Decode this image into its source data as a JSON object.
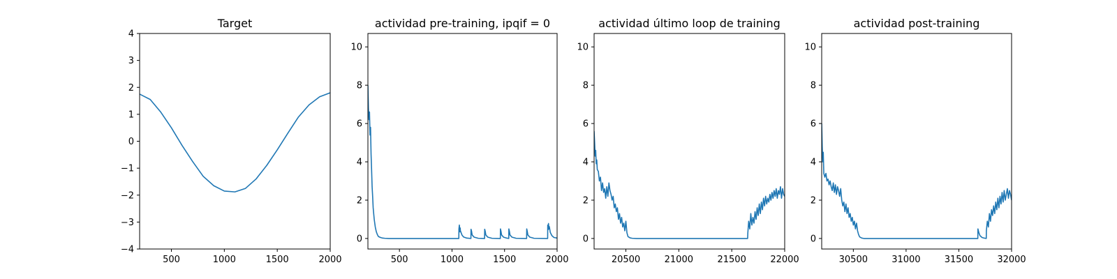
{
  "chart_data": [
    {
      "type": "line",
      "title": "Target",
      "xlabel": "",
      "ylabel": "",
      "xlim": [
        200,
        2000
      ],
      "ylim": [
        -4,
        4
      ],
      "xticks": [
        500,
        1000,
        1500,
        2000
      ],
      "xtick_labels": [
        "500",
        "1000",
        "1500",
        "2000"
      ],
      "yticks": [
        -4,
        -3,
        -2,
        -1,
        0,
        1,
        2,
        3,
        4
      ],
      "ytick_labels": [
        "−4",
        "−3",
        "−2",
        "−1",
        "0",
        "1",
        "2",
        "3",
        "4"
      ],
      "grid": false,
      "color": "#1f77b4",
      "series": [
        {
          "x": [
            200,
            300,
            400,
            500,
            600,
            700,
            800,
            900,
            1000,
            1100,
            1200,
            1300,
            1400,
            1500,
            1600,
            1700,
            1800,
            1900,
            2000
          ],
          "y": [
            1.75,
            1.55,
            1.08,
            0.5,
            -0.15,
            -0.75,
            -1.3,
            -1.65,
            -1.85,
            -1.88,
            -1.75,
            -1.4,
            -0.9,
            -0.32,
            0.3,
            0.9,
            1.35,
            1.65,
            1.8
          ]
        }
      ]
    },
    {
      "type": "line",
      "title": "actividad pre-training, ipqif = 0",
      "xlabel": "",
      "ylabel": "",
      "xlim": [
        200,
        2000
      ],
      "ylim": [
        -0.55,
        10.7
      ],
      "xticks": [
        500,
        1000,
        1500,
        2000
      ],
      "xtick_labels": [
        "500",
        "1000",
        "1500",
        "2000"
      ],
      "yticks": [
        0,
        2,
        4,
        6,
        8,
        10
      ],
      "ytick_labels": [
        "0",
        "2",
        "4",
        "6",
        "8",
        "10"
      ],
      "grid": false,
      "color": "#1f77b4",
      "series": [
        {
          "x": [
            200,
            205,
            210,
            215,
            220,
            225,
            230,
            235,
            240,
            245,
            250,
            260,
            270,
            280,
            290,
            300,
            320,
            340,
            360,
            400,
            600,
            800,
            1000,
            1065,
            1066,
            1070,
            1074,
            1078,
            1080,
            1095,
            1110,
            1140,
            1180,
            1181,
            1186,
            1192,
            1210,
            1250,
            1310,
            1311,
            1316,
            1322,
            1340,
            1380,
            1460,
            1461,
            1466,
            1472,
            1490,
            1520,
            1540,
            1541,
            1546,
            1552,
            1570,
            1610,
            1710,
            1711,
            1716,
            1722,
            1740,
            1780,
            1910,
            1911,
            1914,
            1918,
            1922,
            1926,
            1935,
            1950,
            1970,
            2000
          ],
          "y": [
            8.0,
            6.8,
            6.2,
            6.6,
            5.4,
            5.8,
            4.4,
            3.6,
            2.7,
            2.2,
            1.6,
            1.0,
            0.6,
            0.35,
            0.2,
            0.1,
            0.05,
            0.02,
            0.01,
            0.0,
            0.0,
            0.0,
            0.0,
            0.0,
            0.5,
            0.7,
            0.35,
            0.55,
            0.4,
            0.18,
            0.08,
            0.02,
            0.0,
            0.48,
            0.38,
            0.18,
            0.07,
            0.01,
            0.0,
            0.48,
            0.38,
            0.18,
            0.07,
            0.01,
            0.0,
            0.5,
            0.38,
            0.18,
            0.07,
            0.02,
            0.0,
            0.5,
            0.38,
            0.18,
            0.07,
            0.01,
            0.0,
            0.5,
            0.38,
            0.18,
            0.07,
            0.01,
            0.0,
            0.7,
            0.45,
            0.78,
            0.5,
            0.62,
            0.32,
            0.15,
            0.05,
            0.02
          ]
        }
      ]
    },
    {
      "type": "line",
      "title": "actividad último loop de training",
      "xlabel": "",
      "ylabel": "",
      "xlim": [
        20200,
        22000
      ],
      "ylim": [
        -0.55,
        10.7
      ],
      "xticks": [
        20500,
        21000,
        21500,
        22000
      ],
      "xtick_labels": [
        "20500",
        "21000",
        "21500",
        "22000"
      ],
      "yticks": [
        0,
        2,
        4,
        6,
        8,
        10
      ],
      "ytick_labels": [
        "0",
        "2",
        "4",
        "6",
        "8",
        "10"
      ],
      "grid": false,
      "color": "#1f77b4",
      "series": [
        {
          "x": [
            20200,
            20205,
            20210,
            20215,
            20220,
            20225,
            20230,
            20240,
            20250,
            20260,
            20270,
            20280,
            20290,
            20300,
            20310,
            20320,
            20330,
            20340,
            20350,
            20360,
            20370,
            20380,
            20390,
            20400,
            20410,
            20420,
            20430,
            20440,
            20450,
            20460,
            20470,
            20480,
            20490,
            20500,
            20510,
            20520,
            20540,
            20560,
            20600,
            20800,
            21000,
            21200,
            21400,
            21600,
            21650,
            21652,
            21660,
            21670,
            21680,
            21690,
            21700,
            21710,
            21720,
            21730,
            21740,
            21750,
            21760,
            21770,
            21780,
            21790,
            21800,
            21810,
            21820,
            21830,
            21840,
            21850,
            21860,
            21870,
            21880,
            21890,
            21900,
            21910,
            21920,
            21930,
            21940,
            21950,
            21960,
            21970,
            21980,
            21990,
            22000
          ],
          "y": [
            5.6,
            5.0,
            4.3,
            4.6,
            3.9,
            4.1,
            3.6,
            3.5,
            3.0,
            3.2,
            2.5,
            2.9,
            2.4,
            2.6,
            2.1,
            2.7,
            2.2,
            2.9,
            2.5,
            2.3,
            2.0,
            2.2,
            1.6,
            1.8,
            1.4,
            1.6,
            1.0,
            1.3,
            0.8,
            1.1,
            0.6,
            0.8,
            0.4,
            0.9,
            0.3,
            0.1,
            0.03,
            0.01,
            0.0,
            0.0,
            0.0,
            0.0,
            0.0,
            0.0,
            0.0,
            0.3,
            0.9,
            0.5,
            1.3,
            0.7,
            1.1,
            0.8,
            1.4,
            1.0,
            1.6,
            1.2,
            1.8,
            1.3,
            1.9,
            1.5,
            2.1,
            1.7,
            2.2,
            1.8,
            2.1,
            1.9,
            2.3,
            2.0,
            2.4,
            2.1,
            2.5,
            2.2,
            2.6,
            2.1,
            2.5,
            2.3,
            2.7,
            2.1,
            2.6,
            2.3,
            2.2
          ]
        }
      ]
    },
    {
      "type": "line",
      "title": "actividad post-training",
      "xlabel": "",
      "ylabel": "",
      "xlim": [
        30200,
        32000
      ],
      "ylim": [
        -0.55,
        10.7
      ],
      "xticks": [
        30500,
        31000,
        31500,
        32000
      ],
      "xtick_labels": [
        "30500",
        "31000",
        "31500",
        "32000"
      ],
      "yticks": [
        0,
        2,
        4,
        6,
        8,
        10
      ],
      "ytick_labels": [
        "0",
        "2",
        "4",
        "6",
        "8",
        "10"
      ],
      "grid": false,
      "color": "#1f77b4",
      "series": [
        {
          "x": [
            30200,
            30205,
            30210,
            30215,
            30220,
            30230,
            30240,
            30250,
            30260,
            30270,
            30280,
            30290,
            30300,
            30310,
            30320,
            30330,
            30340,
            30350,
            30360,
            30370,
            30380,
            30390,
            30400,
            30410,
            30420,
            30430,
            30440,
            30450,
            30460,
            30470,
            30480,
            30490,
            30500,
            30510,
            30520,
            30530,
            30540,
            30550,
            30560,
            30580,
            30600,
            30800,
            31000,
            31200,
            31400,
            31600,
            31680,
            31681,
            31690,
            31700,
            31720,
            31740,
            31760,
            31761,
            31770,
            31780,
            31790,
            31800,
            31810,
            31820,
            31830,
            31840,
            31850,
            31860,
            31870,
            31880,
            31890,
            31900,
            31910,
            31920,
            31930,
            31940,
            31950,
            31960,
            31970,
            31980,
            31990,
            32000
          ],
          "y": [
            6.0,
            4.8,
            4.0,
            4.5,
            3.4,
            3.2,
            3.4,
            3.0,
            3.1,
            2.8,
            3.0,
            2.7,
            2.5,
            2.9,
            2.4,
            2.8,
            2.3,
            2.7,
            2.5,
            2.2,
            2.6,
            2.0,
            1.7,
            1.9,
            1.4,
            1.8,
            1.3,
            1.6,
            1.1,
            1.3,
            0.9,
            1.1,
            0.7,
            0.9,
            0.5,
            0.8,
            0.4,
            0.2,
            0.08,
            0.02,
            0.0,
            0.0,
            0.0,
            0.0,
            0.0,
            0.0,
            0.0,
            0.5,
            0.3,
            0.15,
            0.05,
            0.02,
            0.0,
            0.4,
            0.9,
            0.6,
            1.3,
            0.9,
            1.5,
            1.2,
            1.7,
            1.3,
            1.9,
            1.5,
            2.1,
            1.6,
            2.2,
            1.8,
            2.4,
            1.9,
            2.5,
            2.0,
            2.3,
            2.6,
            2.1,
            2.5,
            2.3,
            2.0
          ]
        }
      ]
    }
  ]
}
